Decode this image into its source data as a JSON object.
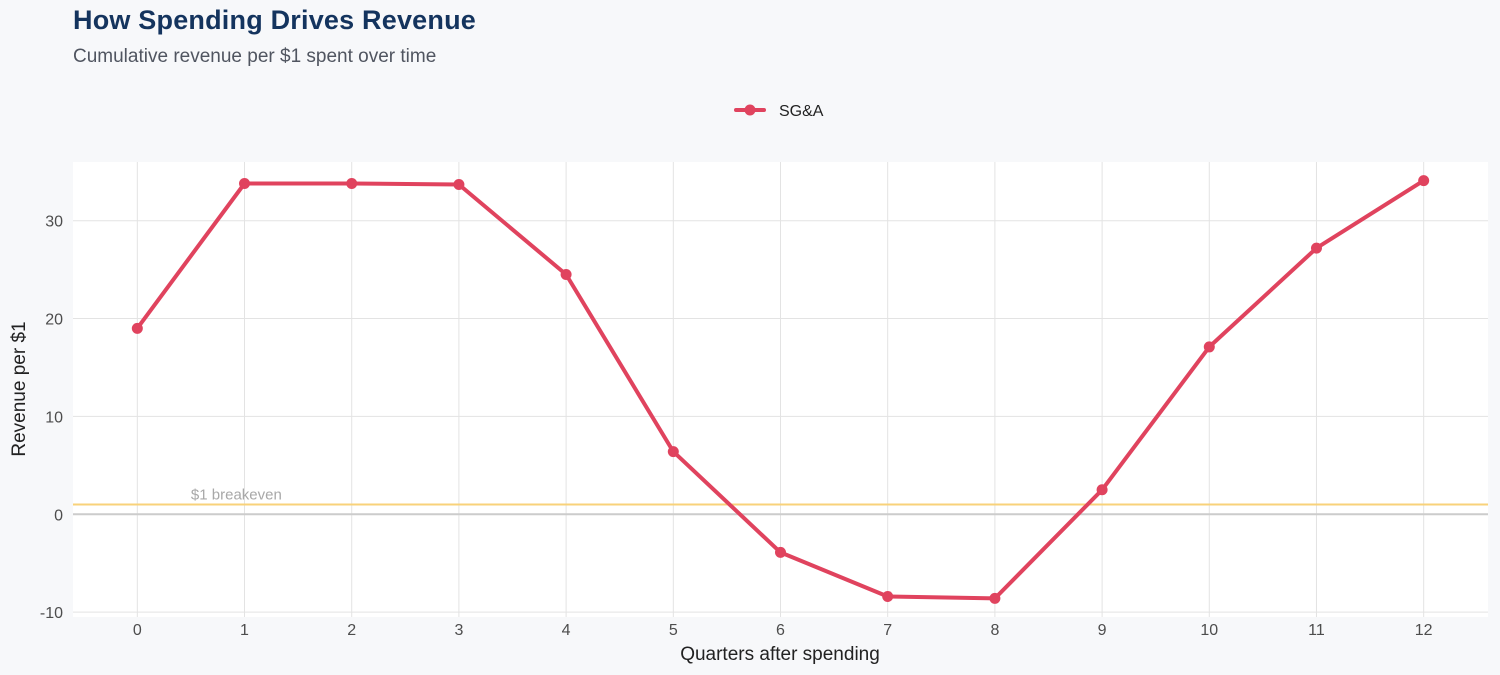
{
  "chart_data": {
    "type": "line",
    "title": "How Spending Drives Revenue",
    "subtitle": "Cumulative revenue per $1 spent over time",
    "xlabel": "Quarters after spending",
    "ylabel": "Revenue per $1",
    "x": [
      0,
      1,
      2,
      3,
      4,
      5,
      6,
      7,
      8,
      9,
      10,
      11,
      12
    ],
    "xlim": [
      -0.6,
      12.6
    ],
    "ylim": [
      -10.5,
      36
    ],
    "yticks": [
      -10,
      0,
      10,
      20,
      30
    ],
    "grid": true,
    "legend_position": "top-center",
    "series": [
      {
        "name": "SG&A",
        "color": "#e0435e",
        "values": [
          19.0,
          33.8,
          33.8,
          33.7,
          24.5,
          6.4,
          -3.9,
          -8.4,
          -8.6,
          2.5,
          17.1,
          27.2,
          34.1
        ]
      }
    ],
    "reference_lines": [
      {
        "y": 1,
        "label": "$1 breakeven",
        "color": "#f8d27a"
      }
    ],
    "zero_line_color": "#cccccc"
  }
}
